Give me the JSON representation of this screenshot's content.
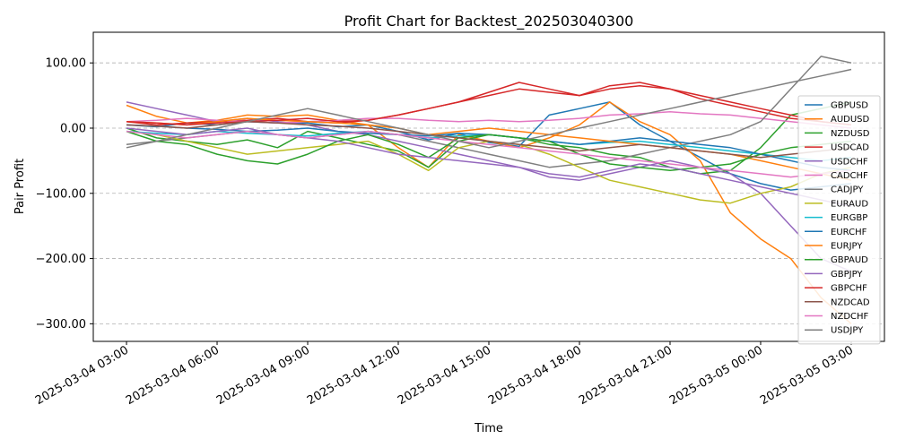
{
  "chart_data": {
    "type": "line",
    "title": "Profit Chart for Backtest_202503040300",
    "xlabel": "Time",
    "ylabel": "Pair Profit",
    "x_axis": {
      "range_hours": [
        -1.1,
        25.1
      ],
      "ticks": [
        {
          "hours": 0,
          "label": "2025-03-04 03:00"
        },
        {
          "hours": 3,
          "label": "2025-03-04 06:00"
        },
        {
          "hours": 6,
          "label": "2025-03-04 09:00"
        },
        {
          "hours": 9,
          "label": "2025-03-04 12:00"
        },
        {
          "hours": 12,
          "label": "2025-03-04 15:00"
        },
        {
          "hours": 15,
          "label": "2025-03-04 18:00"
        },
        {
          "hours": 18,
          "label": "2025-03-04 21:00"
        },
        {
          "hours": 21,
          "label": "2025-03-05 00:00"
        },
        {
          "hours": 24,
          "label": "2025-03-05 03:00"
        }
      ]
    },
    "y_axis": {
      "range": [
        -327,
        147
      ],
      "ticks": [
        {
          "value": 100,
          "label": "100.00"
        },
        {
          "value": 0,
          "label": "0.00"
        },
        {
          "value": -100,
          "label": "−100.00"
        },
        {
          "value": -200,
          "label": "−200.00"
        },
        {
          "value": -300,
          "label": "−300.00"
        }
      ]
    },
    "grid": "horizontal dashed",
    "legend_position": "right",
    "x_hours": [
      0,
      1,
      2,
      3,
      4,
      5,
      6,
      7,
      8,
      9,
      10,
      11,
      12,
      13,
      14,
      15,
      16,
      17,
      18,
      19,
      20,
      21,
      22,
      23,
      24
    ],
    "series": [
      {
        "name": "GBPUSD",
        "color": "#1f77b4",
        "values": [
          5,
          2,
          8,
          5,
          10,
          8,
          8,
          2,
          5,
          -5,
          -18,
          -8,
          -22,
          -28,
          20,
          30,
          40,
          5,
          -20,
          -45,
          -70,
          -85,
          -95,
          -90,
          -85
        ]
      },
      {
        "name": "AUDUSD",
        "color": "#ff7f0e",
        "values": [
          35,
          18,
          8,
          12,
          20,
          18,
          20,
          12,
          5,
          -30,
          -60,
          -10,
          -20,
          -30,
          -15,
          5,
          40,
          10,
          -10,
          -50,
          -130,
          -170,
          -200,
          -260,
          -300
        ]
      },
      {
        "name": "NZDUSD",
        "color": "#2ca02c",
        "values": [
          0,
          -15,
          -20,
          -25,
          -18,
          -30,
          -5,
          -15,
          -25,
          -35,
          -60,
          -20,
          -10,
          -15,
          -25,
          -30,
          -40,
          -45,
          -60,
          -70,
          -65,
          -30,
          20,
          30,
          40
        ]
      },
      {
        "name": "USDCAD",
        "color": "#d62728",
        "values": [
          10,
          5,
          8,
          10,
          12,
          15,
          10,
          8,
          12,
          20,
          30,
          40,
          55,
          70,
          60,
          50,
          65,
          70,
          60,
          45,
          35,
          25,
          15,
          10,
          5
        ]
      },
      {
        "name": "USDCHF",
        "color": "#9467bd",
        "values": [
          40,
          30,
          20,
          10,
          15,
          10,
          5,
          -5,
          -10,
          -20,
          -30,
          -40,
          -50,
          -60,
          -75,
          -80,
          -70,
          -60,
          -50,
          -60,
          -70,
          -100,
          -150,
          -200,
          -220
        ]
      },
      {
        "name": "CADCHF",
        "color": "#e377c2",
        "values": [
          10,
          12,
          15,
          12,
          10,
          8,
          10,
          12,
          15,
          15,
          12,
          10,
          12,
          10,
          12,
          15,
          20,
          22,
          25,
          22,
          20,
          15,
          10,
          5,
          0
        ]
      },
      {
        "name": "CADJPY",
        "color": "#7f7f7f",
        "values": [
          -25,
          -20,
          -15,
          -10,
          -5,
          -10,
          -15,
          -10,
          -5,
          -10,
          -20,
          -30,
          -40,
          -50,
          -60,
          -55,
          -50,
          -40,
          -30,
          -20,
          -10,
          10,
          60,
          110,
          100
        ]
      },
      {
        "name": "EURAUD",
        "color": "#bcbd22",
        "values": [
          -5,
          -10,
          -20,
          -30,
          -40,
          -35,
          -30,
          -25,
          -20,
          -40,
          -65,
          -30,
          -20,
          -25,
          -40,
          -60,
          -80,
          -90,
          -100,
          -110,
          -115,
          -100,
          -90,
          -70,
          -60
        ]
      },
      {
        "name": "EURGBP",
        "color": "#17becf",
        "values": [
          -5,
          -8,
          -10,
          -5,
          -8,
          -10,
          -12,
          -8,
          -5,
          -10,
          -15,
          -12,
          -10,
          -15,
          -20,
          -25,
          -22,
          -20,
          -25,
          -30,
          -35,
          -40,
          -45,
          -50,
          -45
        ]
      },
      {
        "name": "EURCHF",
        "color": "#1f77b4",
        "values": [
          5,
          3,
          0,
          -2,
          -5,
          -3,
          0,
          -5,
          -8,
          -10,
          -12,
          -8,
          -10,
          -15,
          -20,
          -25,
          -20,
          -15,
          -20,
          -25,
          -30,
          -40,
          -50,
          -60,
          -65
        ]
      },
      {
        "name": "EURJPY",
        "color": "#ff7f0e",
        "values": [
          10,
          8,
          5,
          10,
          15,
          12,
          10,
          8,
          5,
          0,
          -10,
          -5,
          0,
          -5,
          -10,
          -15,
          -20,
          -25,
          -30,
          -35,
          -40,
          -50,
          -60,
          -70,
          -80
        ]
      },
      {
        "name": "GBPAUD",
        "color": "#2ca02c",
        "values": [
          -5,
          -20,
          -25,
          -40,
          -50,
          -55,
          -40,
          -20,
          -10,
          -25,
          -45,
          -15,
          -10,
          -15,
          -20,
          -40,
          -55,
          -60,
          -65,
          -60,
          -55,
          -40,
          -30,
          -25,
          -20
        ]
      },
      {
        "name": "GBPJPY",
        "color": "#9467bd",
        "values": [
          0,
          -5,
          -10,
          -5,
          0,
          -10,
          -15,
          -20,
          -30,
          -40,
          -45,
          -50,
          -55,
          -60,
          -70,
          -75,
          -65,
          -55,
          -60,
          -70,
          -80,
          -90,
          -100,
          -110,
          -120
        ]
      },
      {
        "name": "GBPCHF",
        "color": "#d62728",
        "values": [
          10,
          8,
          5,
          8,
          10,
          12,
          15,
          10,
          12,
          20,
          30,
          40,
          50,
          60,
          55,
          50,
          60,
          65,
          60,
          50,
          40,
          30,
          20,
          10,
          5
        ]
      },
      {
        "name": "NZDCAD",
        "color": "#8c564b",
        "values": [
          5,
          3,
          0,
          5,
          10,
          8,
          5,
          3,
          0,
          -5,
          -10,
          -15,
          -20,
          -25,
          -30,
          -35,
          -30,
          -25,
          -30,
          -35,
          -40,
          -45,
          -40,
          -35,
          -30
        ]
      },
      {
        "name": "NZDCHF",
        "color": "#e377c2",
        "values": [
          -5,
          -10,
          -15,
          -10,
          -5,
          -10,
          -15,
          -10,
          -5,
          -10,
          -15,
          -20,
          -25,
          -30,
          -35,
          -40,
          -45,
          -50,
          -55,
          -60,
          -65,
          -70,
          -75,
          -70,
          -65
        ]
      },
      {
        "name": "USDJPY",
        "color": "#7f7f7f",
        "values": [
          -30,
          -20,
          -10,
          0,
          10,
          20,
          30,
          20,
          10,
          0,
          -10,
          -20,
          -30,
          -20,
          -10,
          0,
          10,
          20,
          30,
          40,
          50,
          60,
          70,
          80,
          90
        ]
      }
    ]
  }
}
